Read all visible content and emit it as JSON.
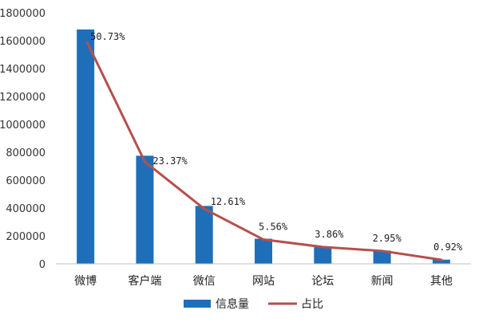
{
  "chart_data": {
    "type": "bar",
    "categories": [
      "微博",
      "客户端",
      "微信",
      "网站",
      "论坛",
      "新闻",
      "其他"
    ],
    "series": [
      {
        "name": "信息量",
        "type": "bar",
        "values": [
          1680000,
          775000,
          415000,
          180000,
          120000,
          95000,
          30000
        ],
        "color": "#1F6FB8"
      },
      {
        "name": "占比",
        "type": "line",
        "values": [
          50.73,
          23.37,
          12.61,
          5.56,
          3.86,
          2.95,
          0.92
        ],
        "labels": [
          "50.73%",
          "23.37%",
          "12.61%",
          "5.56%",
          "3.86%",
          "2.95%",
          "0.92%"
        ],
        "color": "#B5504E"
      }
    ],
    "yticks": [
      "0",
      "200000",
      "400000",
      "600000",
      "800000",
      "1000000",
      "1200000",
      "1400000",
      "1600000",
      "1800000"
    ],
    "ylim": [
      0,
      1800000
    ],
    "y2lim": [
      0,
      57.5
    ],
    "grid": false,
    "legend_position": "bottom-center"
  }
}
